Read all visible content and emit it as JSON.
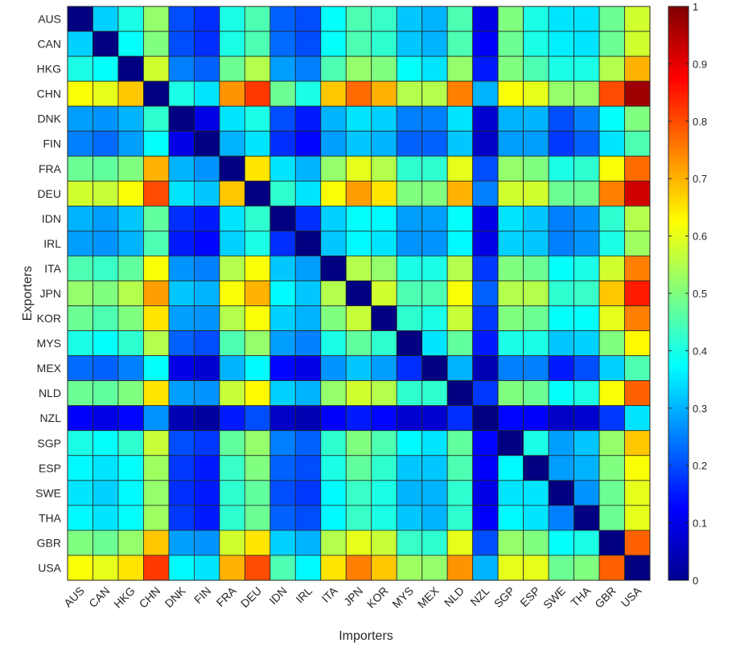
{
  "chart_data": {
    "type": "heatmap",
    "title": "",
    "xlabel": "Importers",
    "ylabel": "Exporters",
    "x_categories": [
      "AUS",
      "CAN",
      "HKG",
      "CHN",
      "DNK",
      "FIN",
      "FRA",
      "DEU",
      "IDN",
      "IRL",
      "ITA",
      "JPN",
      "KOR",
      "MYS",
      "MEX",
      "NLD",
      "NZL",
      "SGP",
      "ESP",
      "SWE",
      "THA",
      "GBR",
      "USA"
    ],
    "y_categories": [
      "AUS",
      "CAN",
      "HKG",
      "CHN",
      "DNK",
      "FIN",
      "FRA",
      "DEU",
      "IDN",
      "IRL",
      "ITA",
      "JPN",
      "KOR",
      "MYS",
      "MEX",
      "NLD",
      "NZL",
      "SGP",
      "ESP",
      "SWE",
      "THA",
      "GBR",
      "USA"
    ],
    "values": [
      [
        0.0,
        0.33,
        0.4,
        0.52,
        0.2,
        0.17,
        0.4,
        0.45,
        0.22,
        0.2,
        0.38,
        0.45,
        0.43,
        0.32,
        0.3,
        0.45,
        0.1,
        0.5,
        0.4,
        0.35,
        0.35,
        0.48,
        0.58
      ],
      [
        0.33,
        0.0,
        0.38,
        0.5,
        0.2,
        0.17,
        0.4,
        0.45,
        0.23,
        0.2,
        0.38,
        0.45,
        0.42,
        0.32,
        0.3,
        0.45,
        0.12,
        0.48,
        0.4,
        0.36,
        0.35,
        0.48,
        0.58
      ],
      [
        0.4,
        0.38,
        0.0,
        0.58,
        0.25,
        0.22,
        0.48,
        0.55,
        0.28,
        0.25,
        0.45,
        0.52,
        0.5,
        0.38,
        0.35,
        0.52,
        0.15,
        0.5,
        0.45,
        0.4,
        0.4,
        0.55,
        0.7
      ],
      [
        0.62,
        0.6,
        0.68,
        0.0,
        0.4,
        0.35,
        0.73,
        0.82,
        0.48,
        0.4,
        0.68,
        0.77,
        0.7,
        0.55,
        0.55,
        0.75,
        0.3,
        0.62,
        0.6,
        0.52,
        0.52,
        0.8,
        0.97
      ],
      [
        0.28,
        0.27,
        0.3,
        0.42,
        0.0,
        0.1,
        0.35,
        0.4,
        0.2,
        0.15,
        0.3,
        0.35,
        0.33,
        0.25,
        0.25,
        0.35,
        0.08,
        0.3,
        0.3,
        0.2,
        0.25,
        0.38,
        0.5
      ],
      [
        0.25,
        0.23,
        0.28,
        0.38,
        0.1,
        0.0,
        0.3,
        0.35,
        0.17,
        0.13,
        0.28,
        0.32,
        0.3,
        0.22,
        0.22,
        0.32,
        0.07,
        0.28,
        0.28,
        0.18,
        0.22,
        0.35,
        0.45
      ],
      [
        0.48,
        0.47,
        0.5,
        0.7,
        0.3,
        0.27,
        0.0,
        0.65,
        0.35,
        0.3,
        0.52,
        0.6,
        0.55,
        0.42,
        0.42,
        0.6,
        0.2,
        0.52,
        0.5,
        0.4,
        0.42,
        0.62,
        0.77
      ],
      [
        0.58,
        0.57,
        0.62,
        0.8,
        0.35,
        0.32,
        0.68,
        0.0,
        0.42,
        0.35,
        0.62,
        0.72,
        0.65,
        0.5,
        0.5,
        0.7,
        0.25,
        0.58,
        0.58,
        0.48,
        0.48,
        0.75,
        0.92
      ],
      [
        0.3,
        0.28,
        0.32,
        0.47,
        0.17,
        0.15,
        0.35,
        0.42,
        0.0,
        0.17,
        0.33,
        0.38,
        0.37,
        0.28,
        0.28,
        0.38,
        0.1,
        0.35,
        0.32,
        0.25,
        0.27,
        0.42,
        0.55
      ],
      [
        0.28,
        0.27,
        0.3,
        0.45,
        0.15,
        0.13,
        0.33,
        0.4,
        0.17,
        0.0,
        0.32,
        0.37,
        0.35,
        0.27,
        0.27,
        0.37,
        0.1,
        0.33,
        0.32,
        0.25,
        0.27,
        0.4,
        0.53
      ],
      [
        0.45,
        0.43,
        0.47,
        0.62,
        0.27,
        0.25,
        0.55,
        0.62,
        0.32,
        0.28,
        0.0,
        0.55,
        0.52,
        0.4,
        0.4,
        0.55,
        0.18,
        0.5,
        0.48,
        0.38,
        0.4,
        0.58,
        0.75
      ],
      [
        0.52,
        0.5,
        0.55,
        0.72,
        0.32,
        0.3,
        0.62,
        0.7,
        0.37,
        0.32,
        0.55,
        0.0,
        0.58,
        0.45,
        0.45,
        0.62,
        0.22,
        0.55,
        0.55,
        0.42,
        0.43,
        0.68,
        0.85
      ],
      [
        0.48,
        0.45,
        0.5,
        0.65,
        0.28,
        0.27,
        0.55,
        0.62,
        0.33,
        0.3,
        0.5,
        0.57,
        0.0,
        0.42,
        0.4,
        0.57,
        0.18,
        0.5,
        0.48,
        0.38,
        0.38,
        0.6,
        0.75
      ],
      [
        0.4,
        0.38,
        0.42,
        0.55,
        0.22,
        0.2,
        0.45,
        0.52,
        0.28,
        0.25,
        0.4,
        0.47,
        0.42,
        0.0,
        0.35,
        0.47,
        0.15,
        0.4,
        0.4,
        0.32,
        0.33,
        0.5,
        0.63
      ],
      [
        0.23,
        0.22,
        0.25,
        0.38,
        0.1,
        0.08,
        0.3,
        0.37,
        0.13,
        0.1,
        0.27,
        0.32,
        0.28,
        0.17,
        0.0,
        0.3,
        0.05,
        0.25,
        0.25,
        0.15,
        0.2,
        0.33,
        0.45
      ],
      [
        0.48,
        0.47,
        0.5,
        0.65,
        0.28,
        0.27,
        0.57,
        0.63,
        0.33,
        0.3,
        0.52,
        0.58,
        0.55,
        0.42,
        0.42,
        0.0,
        0.18,
        0.5,
        0.48,
        0.38,
        0.4,
        0.62,
        0.78
      ],
      [
        0.12,
        0.1,
        0.13,
        0.27,
        0.05,
        0.03,
        0.15,
        0.2,
        0.07,
        0.05,
        0.12,
        0.15,
        0.13,
        0.08,
        0.08,
        0.17,
        0.0,
        0.13,
        0.12,
        0.07,
        0.08,
        0.18,
        0.35
      ],
      [
        0.4,
        0.38,
        0.42,
        0.57,
        0.2,
        0.18,
        0.47,
        0.52,
        0.25,
        0.22,
        0.42,
        0.5,
        0.45,
        0.37,
        0.35,
        0.47,
        0.13,
        0.0,
        0.4,
        0.28,
        0.32,
        0.52,
        0.68
      ],
      [
        0.37,
        0.35,
        0.38,
        0.53,
        0.18,
        0.15,
        0.43,
        0.5,
        0.22,
        0.2,
        0.4,
        0.47,
        0.42,
        0.32,
        0.32,
        0.45,
        0.12,
        0.37,
        0.0,
        0.28,
        0.3,
        0.5,
        0.62
      ],
      [
        0.35,
        0.33,
        0.37,
        0.52,
        0.17,
        0.15,
        0.42,
        0.47,
        0.2,
        0.18,
        0.37,
        0.43,
        0.4,
        0.3,
        0.3,
        0.42,
        0.1,
        0.35,
        0.35,
        0.0,
        0.27,
        0.48,
        0.6
      ],
      [
        0.37,
        0.35,
        0.38,
        0.53,
        0.18,
        0.15,
        0.42,
        0.48,
        0.22,
        0.2,
        0.37,
        0.43,
        0.4,
        0.32,
        0.3,
        0.42,
        0.12,
        0.37,
        0.35,
        0.25,
        0.0,
        0.48,
        0.6
      ],
      [
        0.5,
        0.48,
        0.52,
        0.68,
        0.28,
        0.27,
        0.58,
        0.65,
        0.33,
        0.3,
        0.55,
        0.6,
        0.57,
        0.43,
        0.42,
        0.6,
        0.2,
        0.52,
        0.5,
        0.38,
        0.4,
        0.0,
        0.78
      ],
      [
        0.62,
        0.6,
        0.65,
        0.82,
        0.37,
        0.35,
        0.7,
        0.8,
        0.45,
        0.37,
        0.65,
        0.75,
        0.68,
        0.53,
        0.52,
        0.73,
        0.3,
        0.6,
        0.6,
        0.48,
        0.5,
        0.78,
        0.0
      ]
    ],
    "colormap": "jet",
    "clim": [
      0,
      1
    ],
    "colorbar_ticks": [
      0,
      0.1,
      0.2,
      0.3,
      0.4,
      0.5,
      0.6,
      0.7,
      0.8,
      0.9,
      1
    ],
    "colorbar_tick_labels": [
      "0",
      "0.1",
      "0.2",
      "0.3",
      "0.4",
      "0.5",
      "0.6",
      "0.7",
      "0.8",
      "0.9",
      "1"
    ],
    "legend": "colorbar-right"
  }
}
